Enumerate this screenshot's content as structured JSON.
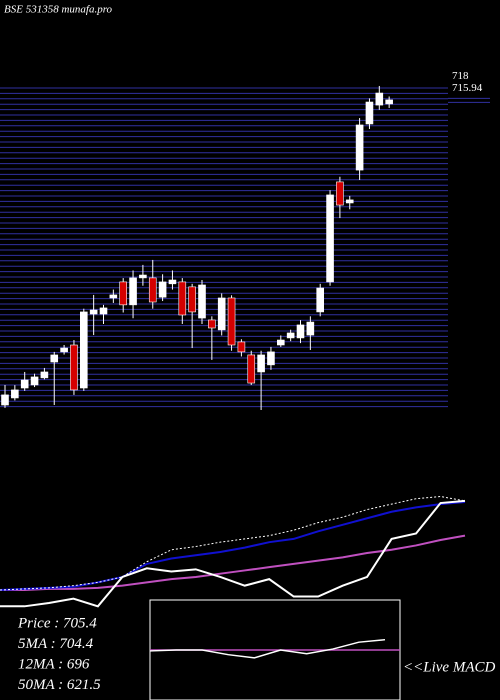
{
  "chart_data": [
    {
      "type": "candlestick",
      "title": "BSE 531358 munafa.pro",
      "open": [
        557.6,
        561.3,
        566.5,
        568.1,
        571.8,
        580.1,
        585.4,
        589.0,
        566.5,
        605.2,
        605.2,
        613.6,
        622.0,
        610.0,
        624.1,
        624.1,
        614,
        621,
        622,
        619.4,
        603.1,
        602.1,
        596.9,
        613.6,
        590.6,
        583.8,
        574.9,
        578.6,
        589.0,
        592.7,
        592.7,
        594.2,
        606.3,
        622.0,
        674.3,
        663.3,
        680.5,
        704.6,
        714.5,
        715.1
      ],
      "high": [
        568.1,
        568,
        574.9,
        574,
        577,
        585.4,
        589,
        591.6,
        608,
        615.2,
        610,
        618,
        624,
        628,
        630.9,
        633.5,
        626,
        628,
        624,
        621,
        623,
        604,
        616,
        615,
        592,
        586,
        586,
        588,
        594,
        597,
        602,
        604,
        621,
        670,
        677,
        667,
        707.7,
        718,
        724.5,
        719
      ],
      "low": [
        556.1,
        560,
        565,
        567,
        571,
        557.6,
        584,
        562.9,
        565,
        594.2,
        600,
        611,
        606,
        603,
        620,
        608,
        612,
        618,
        600,
        587.4,
        600,
        581.2,
        594,
        586,
        583,
        568.1,
        555.0,
        576,
        588,
        591,
        590,
        586.4,
        604,
        620,
        655.4,
        660,
        675.3,
        702,
        712,
        713
      ],
      "close": [
        562.9,
        565.5,
        570.7,
        572.3,
        574.9,
        583.8,
        587.4,
        565.5,
        606.3,
        607.3,
        608.4,
        615.2,
        610.0,
        624.1,
        625.6,
        611.5,
        622,
        623,
        604.7,
        606.3,
        620.4,
        597.9,
        613.6,
        589.0,
        585.4,
        569.1,
        583.8,
        585.4,
        591.6,
        595.3,
        599.5,
        601.0,
        618.8,
        667.5,
        662.2,
        664.9,
        704.1,
        716.1,
        720.8,
        717.2
      ],
      "ylim": [
        555,
        725
      ],
      "yticks": [
        718,
        715.94
      ],
      "up_color": "#ffffff",
      "down_color": "#d40000"
    },
    {
      "type": "line",
      "ylim": [
        0,
        115
      ],
      "legend": [
        "Price   : 705.4",
        "5MA   : 704.4",
        "12MA : 696",
        "50MA : 621.5"
      ],
      "series": [
        {
          "name": "Price",
          "color": "#ffffff",
          "values": [
            8,
            8,
            11,
            15,
            8,
            35,
            43,
            40,
            42,
            35,
            27,
            33,
            17,
            17,
            27,
            35,
            70,
            75,
            103,
            105
          ]
        },
        {
          "name": "5MA",
          "color": "#ffffff",
          "values": [
            23,
            24,
            25,
            27,
            30,
            35,
            49,
            60,
            63,
            67,
            70,
            73,
            78,
            85,
            90,
            97,
            102,
            107,
            109,
            105
          ]
        },
        {
          "name": "12MA",
          "color": "#1010d0",
          "values": [
            23,
            24,
            25,
            26,
            30,
            35,
            47,
            52,
            55,
            58,
            62,
            67,
            70,
            77,
            83,
            89,
            95,
            99,
            102,
            104
          ]
        },
        {
          "name": "50MA",
          "color": "#c050c0",
          "values": [
            23,
            23,
            24,
            24,
            25,
            27,
            30,
            33,
            35,
            38,
            41,
            44,
            47,
            50,
            53,
            57,
            60,
            64,
            69,
            73
          ]
        }
      ]
    },
    {
      "type": "macd",
      "label": "<<Live MACD",
      "ylim": [
        -16,
        16
      ],
      "color": "#ffffff",
      "zero_color": "#c050c0",
      "values": [
        -0.3,
        0,
        0,
        -1.5,
        -2.5,
        0,
        -1.2,
        0.3,
        2.5,
        3.3
      ]
    }
  ]
}
